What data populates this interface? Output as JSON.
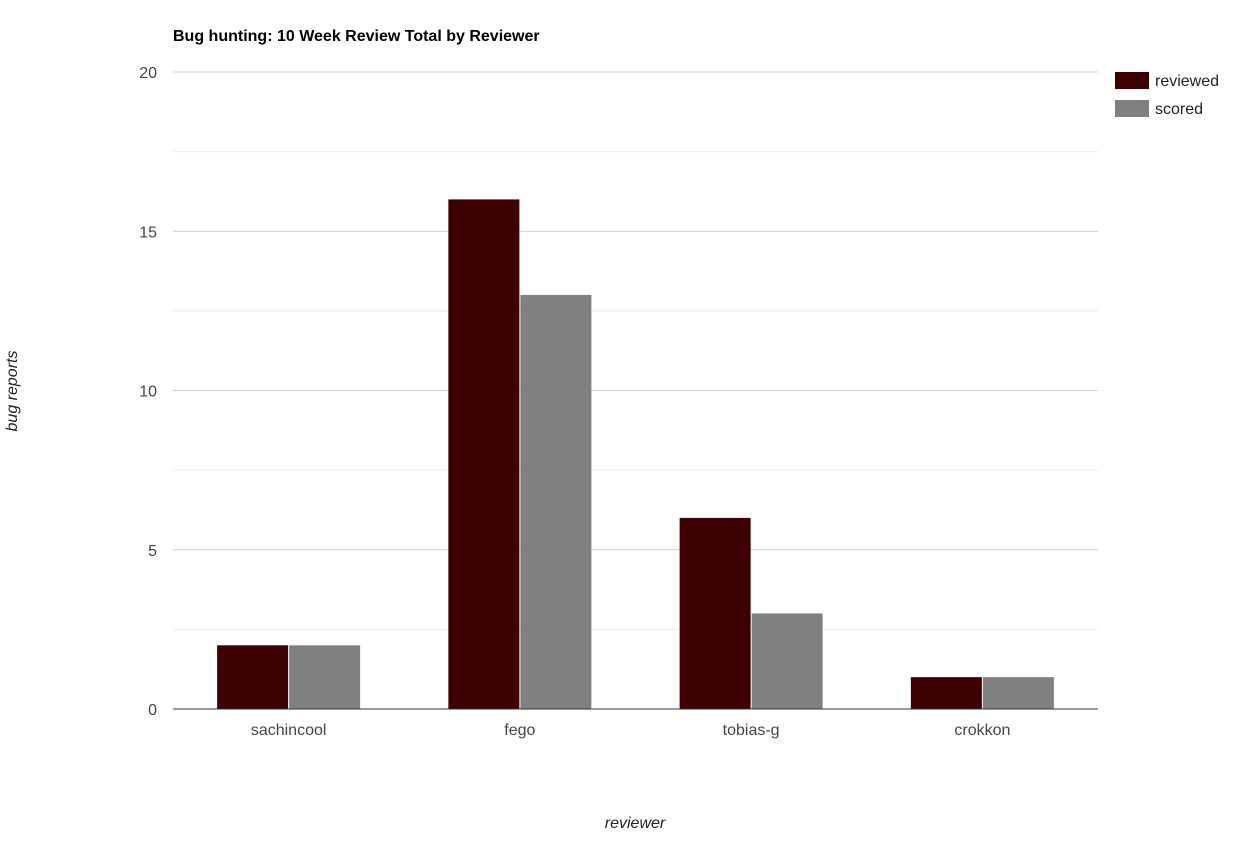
{
  "chart_data": {
    "type": "bar",
    "title": "Bug hunting: 10 Week Review Total by Reviewer",
    "xlabel": "reviewer",
    "ylabel": "bug reports",
    "categories": [
      "sachincool",
      "fego",
      "tobias-g",
      "crokkon"
    ],
    "series": [
      {
        "name": "reviewed",
        "values": [
          2,
          16,
          6,
          1
        ],
        "color": "#3d0000"
      },
      {
        "name": "scored",
        "values": [
          2,
          13,
          3,
          1
        ],
        "color": "#808080"
      }
    ],
    "ylim": [
      0,
      20
    ],
    "yticks": [
      0,
      5,
      10,
      15,
      20
    ],
    "grid": true,
    "minor_grid": true,
    "legend_position": "right"
  }
}
